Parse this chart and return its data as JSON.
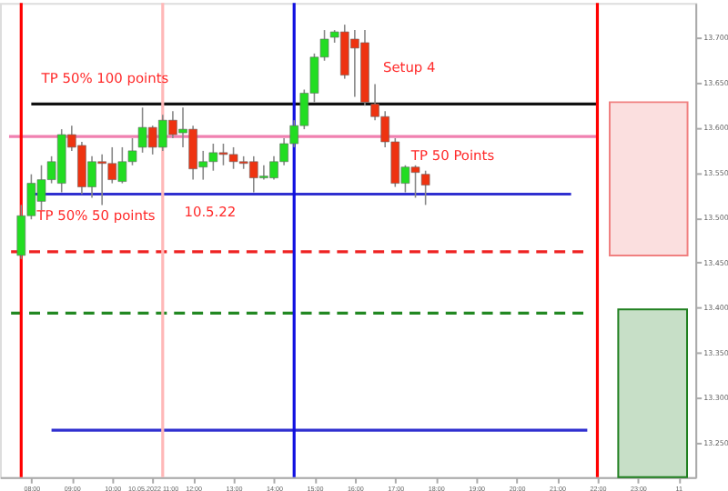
{
  "chart_data": {
    "type": "candlestick",
    "x": [
      "2022-05-10T07:45",
      "2022-05-10T08:00",
      "2022-05-10T08:15",
      "2022-05-10T08:30",
      "2022-05-10T08:45",
      "2022-05-10T09:00",
      "2022-05-10T09:15",
      "2022-05-10T09:30",
      "2022-05-10T09:45",
      "2022-05-10T10:00",
      "2022-05-10T10:15",
      "2022-05-10T10:30",
      "2022-05-10T10:45",
      "2022-05-10T11:00",
      "2022-05-10T11:15",
      "2022-05-10T11:30",
      "2022-05-10T11:45",
      "2022-05-10T12:00",
      "2022-05-10T12:15",
      "2022-05-10T12:30",
      "2022-05-10T12:45",
      "2022-05-10T13:00",
      "2022-05-10T13:15",
      "2022-05-10T13:30",
      "2022-05-10T13:45",
      "2022-05-10T14:00",
      "2022-05-10T14:15",
      "2022-05-10T14:30",
      "2022-05-10T14:45",
      "2022-05-10T15:00",
      "2022-05-10T15:15",
      "2022-05-10T15:30",
      "2022-05-10T15:45",
      "2022-05-10T16:00",
      "2022-05-10T16:15",
      "2022-05-10T16:30",
      "2022-05-10T16:45",
      "2022-05-10T17:00",
      "2022-05-10T17:15",
      "2022-05-10T17:30",
      "2022-05-10T17:45"
    ],
    "ohlc": [
      [
        13.458,
        13.514,
        13.454,
        13.502
      ],
      [
        13.502,
        13.548,
        13.498,
        13.538
      ],
      [
        13.518,
        13.558,
        13.508,
        13.542
      ],
      [
        13.542,
        13.568,
        13.538,
        13.562
      ],
      [
        13.538,
        13.598,
        13.528,
        13.592
      ],
      [
        13.592,
        13.602,
        13.574,
        13.578
      ],
      [
        13.58,
        13.584,
        13.526,
        13.534
      ],
      [
        13.534,
        13.568,
        13.522,
        13.562
      ],
      [
        13.562,
        13.57,
        13.514,
        13.56
      ],
      [
        13.56,
        13.578,
        13.538,
        13.542
      ],
      [
        13.54,
        13.578,
        13.538,
        13.562
      ],
      [
        13.562,
        13.588,
        13.558,
        13.574
      ],
      [
        13.578,
        13.622,
        13.572,
        13.6
      ],
      [
        13.6,
        13.602,
        13.57,
        13.578
      ],
      [
        13.578,
        13.614,
        13.574,
        13.608
      ],
      [
        13.608,
        13.618,
        13.588,
        13.592
      ],
      [
        13.594,
        13.622,
        13.578,
        13.598
      ],
      [
        13.598,
        13.602,
        13.542,
        13.554
      ],
      [
        13.556,
        13.574,
        13.542,
        13.562
      ],
      [
        13.562,
        13.582,
        13.552,
        13.572
      ],
      [
        13.572,
        13.582,
        13.558,
        13.57
      ],
      [
        13.57,
        13.578,
        13.554,
        13.562
      ],
      [
        13.562,
        13.568,
        13.554,
        13.56
      ],
      [
        13.562,
        13.568,
        13.528,
        13.544
      ],
      [
        13.544,
        13.558,
        13.542,
        13.546
      ],
      [
        13.544,
        13.568,
        13.542,
        13.562
      ],
      [
        13.562,
        13.588,
        13.558,
        13.582
      ],
      [
        13.582,
        13.608,
        13.578,
        13.602
      ],
      [
        13.602,
        13.642,
        13.598,
        13.638
      ],
      [
        13.638,
        13.682,
        13.628,
        13.678
      ],
      [
        13.678,
        13.708,
        13.674,
        13.698
      ],
      [
        13.7,
        13.708,
        13.694,
        13.706
      ],
      [
        13.706,
        13.714,
        13.654,
        13.658
      ],
      [
        13.698,
        13.708,
        13.634,
        13.688
      ],
      [
        13.694,
        13.708,
        13.624,
        13.628
      ],
      [
        13.626,
        13.648,
        13.608,
        13.612
      ],
      [
        13.612,
        13.618,
        13.578,
        13.584
      ],
      [
        13.584,
        13.588,
        13.534,
        13.538
      ],
      [
        13.538,
        13.558,
        13.528,
        13.556
      ],
      [
        13.556,
        13.558,
        13.522,
        13.55
      ],
      [
        13.548,
        13.552,
        13.514,
        13.536
      ]
    ],
    "colors": [
      "#22dd22",
      "#22dd22",
      "#22dd22",
      "#22dd22",
      "#22dd22",
      "#ee3311",
      "#ee3311",
      "#22dd22",
      "#ee3311",
      "#ee3311",
      "#22dd22",
      "#22dd22",
      "#22dd22",
      "#ee3311",
      "#22dd22",
      "#ee3311",
      "#22dd22",
      "#ee3311",
      "#22dd22",
      "#22dd22",
      "#ee3311",
      "#ee3311",
      "#ee3311",
      "#ee3311",
      "#22dd22",
      "#22dd22",
      "#22dd22",
      "#22dd22",
      "#22dd22",
      "#22dd22",
      "#22dd22",
      "#22dd22",
      "#ee3311",
      "#ee3311",
      "#ee3311",
      "#ee3311",
      "#ee3311",
      "#ee3311",
      "#22dd22",
      "#ee3311",
      "#ee3311"
    ],
    "series": [
      {
        "type": "bar",
        "x": [
          "2022-05-10T23:16"
        ],
        "base": [
          13.458
        ],
        "values": [
          0.17
        ],
        "color": "#f08080"
      },
      {
        "type": "bar",
        "x": [
          "2022-05-10T23:22"
        ],
        "base": [
          13.212
        ],
        "values": [
          0.186
        ],
        "color": "#208020"
      },
      {
        "type": "line",
        "x": [
          "2022-05-10T08:00",
          "2022-05-10T22:00"
        ],
        "values": [
          13.626,
          13.626
        ],
        "color": "#111111",
        "line_style": "solid"
      },
      {
        "type": "line",
        "x": [
          "2022-05-10T07:27",
          "2022-05-10T22:00"
        ],
        "values": [
          13.59,
          13.59
        ],
        "color": "#f080b0",
        "line_style": "solid"
      },
      {
        "type": "line",
        "x": [
          "2022-05-10T08:00",
          "2022-05-10T21:21"
        ],
        "values": [
          13.526,
          13.526
        ],
        "color": "#3030d0",
        "line_style": "solid"
      },
      {
        "type": "line",
        "x": [
          "2022-05-10T07:30",
          "2022-05-10T21:45"
        ],
        "values": [
          13.462,
          13.462
        ],
        "color": "#ee2222",
        "line_style": "dashed"
      },
      {
        "type": "line",
        "x": [
          "2022-05-10T07:30",
          "2022-05-10T21:45"
        ],
        "values": [
          13.394,
          13.394
        ],
        "color": "#228822",
        "line_style": "dashed"
      },
      {
        "type": "line",
        "x": [
          "2022-05-10T08:30",
          "2022-05-10T21:45"
        ],
        "values": [
          13.264,
          13.264
        ],
        "color": "#3030d0",
        "line_style": "solid"
      }
    ],
    "ref_lines": [
      {
        "axis": "x",
        "value": "2022-05-10T07:45",
        "color": "#ff0000"
      },
      {
        "axis": "x",
        "value": "2022-05-10T11:15",
        "color": "#ffb8b8"
      },
      {
        "axis": "x",
        "value": "2022-05-10T14:30",
        "color": "#1010e0"
      },
      {
        "axis": "x",
        "value": "2022-05-10T22:00",
        "color": "#ff0000"
      }
    ],
    "annotations": [
      "TP 50%   100 points",
      "TP 50% 50 points",
      "10.5.22",
      "Setup 4",
      "TP 50 Points"
    ],
    "xlim": [
      "2022-05-10T07:27",
      "2022-05-11T00:12"
    ],
    "xticks": [
      {
        "value": "2022-05-10T08:00",
        "label": "08:00"
      },
      {
        "value": "2022-05-10T09:00",
        "label": "09:00"
      },
      {
        "value": "2022-05-10T10:00",
        "label": "10:00"
      },
      {
        "value": "2022-05-10T11:00",
        "label": "10.05.2022 11:00"
      },
      {
        "value": "2022-05-10T12:00",
        "label": "12:00"
      },
      {
        "value": "2022-05-10T13:00",
        "label": "13:00"
      },
      {
        "value": "2022-05-10T14:00",
        "label": "14:00"
      },
      {
        "value": "2022-05-10T15:00",
        "label": "15:00"
      },
      {
        "value": "2022-05-10T16:00",
        "label": "16:00"
      },
      {
        "value": "2022-05-10T17:00",
        "label": "17:00"
      },
      {
        "value": "2022-05-10T18:00",
        "label": "18:00"
      },
      {
        "value": "2022-05-10T19:00",
        "label": "19:00"
      },
      {
        "value": "2022-05-10T20:00",
        "label": "20:00"
      },
      {
        "value": "2022-05-10T21:00",
        "label": "21:00"
      },
      {
        "value": "2022-05-10T22:00",
        "label": "22:00"
      },
      {
        "value": "2022-05-10T23:00",
        "label": "23:00"
      },
      {
        "value": "2022-05-11T00:00",
        "label": "11"
      }
    ],
    "ylim": [
      13.212,
      13.738
    ],
    "yticks": [
      {
        "value": 13.25,
        "label": "13.250"
      },
      {
        "value": 13.3,
        "label": "13.300"
      },
      {
        "value": 13.35,
        "label": "13.350"
      },
      {
        "value": 13.4,
        "label": "13.400"
      },
      {
        "value": 13.45,
        "label": "13.450"
      },
      {
        "value": 13.5,
        "label": "13.500"
      },
      {
        "value": 13.55,
        "label": "13.550"
      },
      {
        "value": 13.6,
        "label": "13.600"
      },
      {
        "value": 13.65,
        "label": "13.650"
      },
      {
        "value": 13.7,
        "label": "13.700"
      }
    ]
  }
}
